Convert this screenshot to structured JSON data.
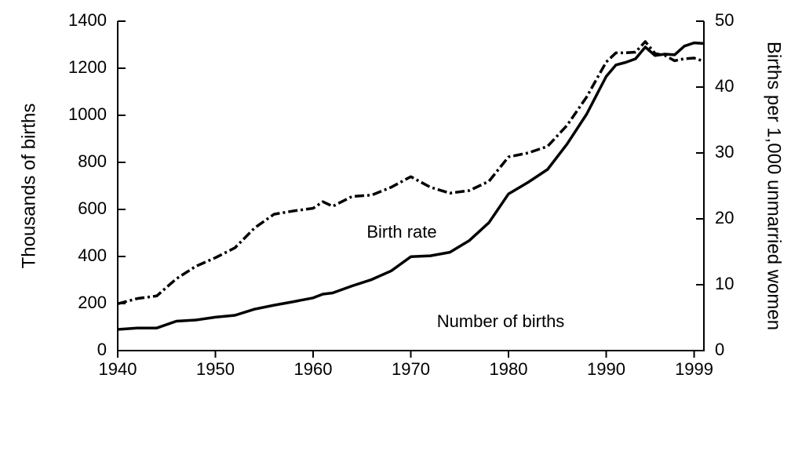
{
  "chart_data": {
    "type": "line",
    "y_label": "Thousands of births",
    "y2_label": "Births per 1,000 unmarried women",
    "annotations": [
      "Birth rate",
      "Number of births"
    ],
    "x": [
      1940,
      1942,
      1944,
      1946,
      1948,
      1950,
      1952,
      1954,
      1956,
      1958,
      1960,
      1961,
      1962,
      1964,
      1966,
      1968,
      1970,
      1972,
      1974,
      1976,
      1978,
      1980,
      1982,
      1984,
      1986,
      1988,
      1990,
      1991,
      1992,
      1993,
      1994,
      1995,
      1996,
      1997,
      1998,
      1999,
      2000
    ],
    "series": [
      {
        "name": "Number of births",
        "color": "#000000",
        "style": "solid",
        "values": [
          90,
          96,
          96,
          125,
          130,
          142,
          150,
          176,
          193,
          208,
          224,
          240,
          245,
          275,
          302,
          339,
          399,
          403,
          418,
          468,
          544,
          666,
          715,
          770,
          878,
          1005,
          1165,
          1214,
          1225,
          1240,
          1290,
          1254,
          1260,
          1257,
          1294,
          1308,
          1305
        ]
      },
      {
        "name": "Birth rate",
        "color": "#000000",
        "style": "dashdot",
        "axis": "y2",
        "values": [
          7.1,
          7.9,
          8.3,
          10.9,
          12.8,
          14.1,
          15.6,
          18.6,
          20.7,
          21.2,
          21.6,
          22.6,
          21.9,
          23.4,
          23.6,
          24.8,
          26.4,
          24.8,
          23.9,
          24.3,
          25.7,
          29.4,
          30.0,
          31.0,
          34.2,
          38.5,
          43.8,
          45.2,
          45.2,
          45.3,
          46.9,
          45.1,
          44.8,
          44.0,
          44.3,
          44.4,
          43.9
        ]
      }
    ],
    "xlim": [
      1940,
      2000
    ],
    "xticks": [
      1940,
      1950,
      1960,
      1970,
      1980,
      1990,
      1999
    ],
    "ylim": [
      0,
      1400
    ],
    "yticks": [
      0,
      200,
      400,
      600,
      800,
      1000,
      1200,
      1400
    ],
    "y2lim": [
      0,
      50
    ],
    "y2ticks": [
      0,
      10,
      20,
      30,
      40,
      50
    ],
    "grid": false
  }
}
